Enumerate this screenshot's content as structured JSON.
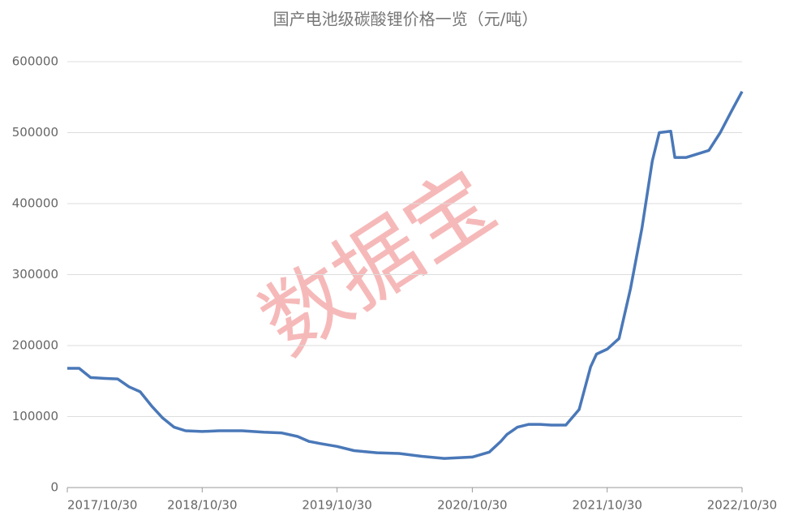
{
  "chart_data": {
    "type": "line",
    "title": "国产电池级碳酸锂价格一览（元/吨）",
    "watermark": "数据宝",
    "x": [
      "2017/10/30",
      "2017/12/01",
      "2018/01/01",
      "2018/02/01",
      "2018/03/15",
      "2018/04/15",
      "2018/05/15",
      "2018/06/15",
      "2018/07/15",
      "2018/08/15",
      "2018/09/15",
      "2018/10/30",
      "2018/12/15",
      "2019/02/15",
      "2019/04/15",
      "2019/06/01",
      "2019/07/15",
      "2019/08/15",
      "2019/09/15",
      "2019/10/30",
      "2019/12/15",
      "2020/02/15",
      "2020/04/15",
      "2020/06/15",
      "2020/08/15",
      "2020/10/30",
      "2020/12/15",
      "2021/01/15",
      "2021/02/01",
      "2021/03/01",
      "2021/04/01",
      "2021/05/01",
      "2021/06/01",
      "2021/07/10",
      "2021/08/15",
      "2021/09/15",
      "2021/10/01",
      "2021/10/30",
      "2021/12/01",
      "2022/01/01",
      "2022/02/01",
      "2022/03/01",
      "2022/03/20",
      "2022/04/20",
      "2022/05/01",
      "2022/06/01",
      "2022/07/01",
      "2022/08/01",
      "2022/09/01",
      "2022/10/01",
      "2022/10/30"
    ],
    "series": [
      {
        "name": "碳酸锂价格",
        "color": "#4a78b8",
        "values": [
          168000,
          168000,
          155000,
          154000,
          153000,
          142000,
          135000,
          115000,
          98000,
          85000,
          80000,
          79000,
          80000,
          80000,
          78000,
          77000,
          72000,
          65000,
          62000,
          58000,
          52000,
          49000,
          48000,
          44000,
          41000,
          43000,
          50000,
          65000,
          75000,
          85000,
          89000,
          89000,
          88000,
          88000,
          110000,
          170000,
          188000,
          195000,
          210000,
          280000,
          365000,
          460000,
          500000,
          502000,
          465000,
          465000,
          470000,
          475000,
          500000,
          530000,
          558000
        ]
      }
    ],
    "xlim": [
      "2017/10/30",
      "2022/10/30"
    ],
    "xticks": [
      "2017/10/30",
      "2018/10/30",
      "2019/10/30",
      "2020/10/30",
      "2021/10/30",
      "2022/10/30"
    ],
    "ylim": [
      0,
      600000
    ],
    "yticks": [
      0,
      100000,
      200000,
      300000,
      400000,
      500000,
      600000
    ],
    "grid": true
  }
}
